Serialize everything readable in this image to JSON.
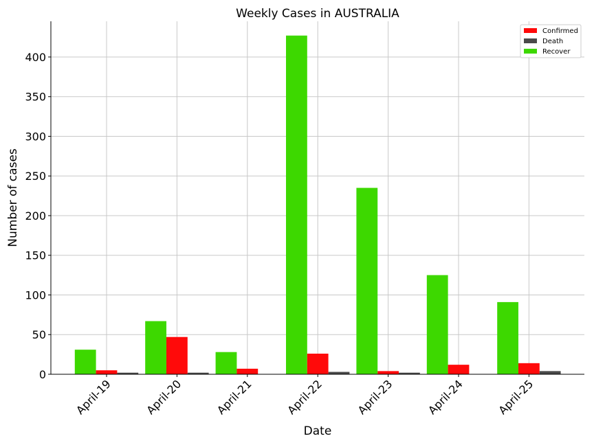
{
  "chart_data": {
    "type": "bar",
    "title": "Weekly Cases in AUSTRALIA",
    "xlabel": "Date",
    "ylabel": "Number of cases",
    "categories": [
      "April-19",
      "April-20",
      "April-21",
      "April-22",
      "April-23",
      "April-24",
      "April-25"
    ],
    "series": [
      {
        "name": "Recover",
        "color": "#3dd800",
        "values": [
          31,
          67,
          28,
          427,
          235,
          125,
          91
        ]
      },
      {
        "name": "Confirmed",
        "color": "#ff0a0a",
        "values": [
          5,
          47,
          7,
          26,
          4,
          12,
          14
        ]
      },
      {
        "name": "Death",
        "color": "#4a4a4a",
        "values": [
          2,
          2,
          0,
          3,
          2,
          0,
          4
        ]
      }
    ],
    "legend_order": [
      "Confirmed",
      "Death",
      "Recover"
    ],
    "ylim": [
      0,
      445
    ],
    "yticks": [
      0,
      50,
      100,
      150,
      200,
      250,
      300,
      350,
      400
    ],
    "grid": true,
    "legend_position": "top-right"
  }
}
